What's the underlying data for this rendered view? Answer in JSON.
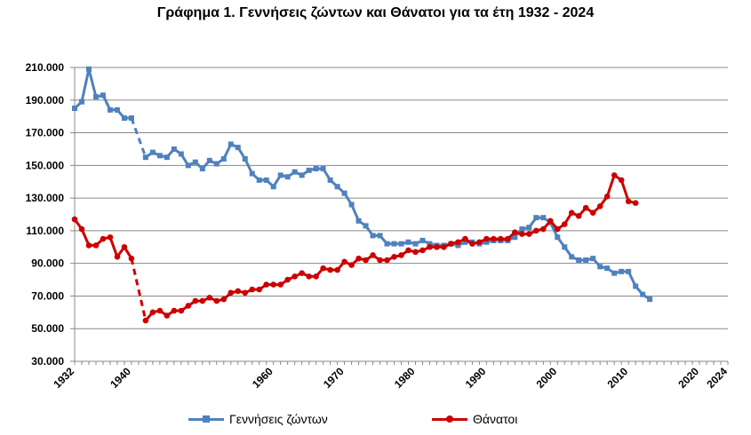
{
  "chart_data": {
    "type": "line",
    "title": "Γράφημα 1.  Γεννήσεις ζώντων και Θάνατοι για τα έτη 1932 - 2024",
    "xlabel": "",
    "ylabel": "",
    "ylim": [
      30000,
      210000
    ],
    "xlim": [
      1932,
      2024
    ],
    "y_ticks": [
      30000,
      50000,
      70000,
      90000,
      110000,
      130000,
      150000,
      170000,
      190000,
      210000
    ],
    "y_tick_labels": [
      "30.000",
      "50.000",
      "70.000",
      "90.000",
      "110.000",
      "130.000",
      "150.000",
      "170.000",
      "190.000",
      "210.000"
    ],
    "x_ticks": [
      1932,
      1940,
      1960,
      1970,
      1980,
      1990,
      2000,
      2010,
      2020,
      2024
    ],
    "x_tick_labels": [
      "1932",
      "1940",
      "1960",
      "1970",
      "1980",
      "1990",
      "2000",
      "2010",
      "2020",
      "2024"
    ],
    "grid": "horizontal",
    "legend_position": "bottom",
    "series": [
      {
        "name": "Γεννήσεις ζώντων",
        "color": "#4f81bd",
        "marker": "square",
        "segments": [
          {
            "style": "solid",
            "points": [
              [
                1932,
                185000
              ],
              [
                1933,
                189000
              ],
              [
                1934,
                209000
              ],
              [
                1935,
                192000
              ],
              [
                1936,
                193000
              ],
              [
                1937,
                184000
              ],
              [
                1938,
                184000
              ],
              [
                1939,
                179000
              ],
              [
                1940,
                179000
              ]
            ]
          },
          {
            "style": "dashed",
            "points": [
              [
                1940,
                179000
              ],
              [
                1942,
                155000
              ]
            ]
          },
          {
            "style": "solid",
            "points": [
              [
                1942,
                155000
              ],
              [
                1943,
                158000
              ],
              [
                1944,
                156000
              ],
              [
                1945,
                155000
              ],
              [
                1946,
                160000
              ],
              [
                1947,
                157000
              ],
              [
                1948,
                150000
              ],
              [
                1949,
                152000
              ],
              [
                1950,
                148000
              ],
              [
                1951,
                153000
              ],
              [
                1952,
                151000
              ],
              [
                1953,
                154000
              ],
              [
                1954,
                163000
              ],
              [
                1955,
                161000
              ],
              [
                1956,
                154000
              ],
              [
                1957,
                145000
              ],
              [
                1958,
                141000
              ],
              [
                1959,
                141000
              ],
              [
                1960,
                137000
              ],
              [
                1961,
                144000
              ],
              [
                1962,
                143000
              ],
              [
                1963,
                146000
              ],
              [
                1964,
                144000
              ],
              [
                1965,
                147000
              ],
              [
                1966,
                148000
              ],
              [
                1967,
                148000
              ],
              [
                1968,
                141000
              ],
              [
                1969,
                137000
              ],
              [
                1970,
                133000
              ],
              [
                1971,
                126000
              ],
              [
                1972,
                116000
              ],
              [
                1973,
                113000
              ],
              [
                1974,
                107000
              ],
              [
                1975,
                107000
              ],
              [
                1976,
                102000
              ],
              [
                1977,
                102000
              ],
              [
                1978,
                102000
              ],
              [
                1979,
                103000
              ],
              [
                1980,
                102000
              ],
              [
                1981,
                104000
              ],
              [
                1982,
                102000
              ],
              [
                1983,
                101000
              ],
              [
                1984,
                101000
              ],
              [
                1985,
                102000
              ],
              [
                1986,
                101000
              ],
              [
                1987,
                103000
              ],
              [
                1988,
                103000
              ],
              [
                1989,
                102000
              ],
              [
                1990,
                103000
              ],
              [
                1991,
                104000
              ],
              [
                1992,
                104000
              ],
              [
                1993,
                104000
              ],
              [
                1994,
                106000
              ],
              [
                1995,
                111000
              ],
              [
                1996,
                112000
              ],
              [
                1997,
                118000
              ],
              [
                1998,
                118000
              ],
              [
                1999,
                115000
              ],
              [
                2000,
                106000
              ],
              [
                2001,
                100000
              ],
              [
                2002,
                94000
              ],
              [
                2003,
                92000
              ],
              [
                2004,
                92000
              ],
              [
                2005,
                93000
              ],
              [
                2006,
                88000
              ],
              [
                2007,
                87000
              ],
              [
                2008,
                84000
              ],
              [
                2009,
                85000
              ],
              [
                2010,
                85000
              ],
              [
                2011,
                76000
              ],
              [
                2012,
                71000
              ],
              [
                2013,
                68000
              ]
            ]
          }
        ]
      },
      {
        "name": "Θάνατοι",
        "color": "#cc0000",
        "marker": "circle",
        "segments": [
          {
            "style": "solid",
            "points": [
              [
                1932,
                117000
              ],
              [
                1933,
                111000
              ],
              [
                1934,
                101000
              ],
              [
                1935,
                101000
              ],
              [
                1936,
                105000
              ],
              [
                1937,
                106000
              ],
              [
                1938,
                94000
              ],
              [
                1939,
                100000
              ],
              [
                1940,
                93000
              ]
            ]
          },
          {
            "style": "dashed",
            "points": [
              [
                1940,
                93000
              ],
              [
                1942,
                55000
              ]
            ]
          },
          {
            "style": "solid",
            "points": [
              [
                1942,
                55000
              ],
              [
                1943,
                60000
              ],
              [
                1944,
                61000
              ],
              [
                1945,
                58000
              ],
              [
                1946,
                61000
              ],
              [
                1947,
                61000
              ],
              [
                1948,
                64000
              ],
              [
                1949,
                67000
              ],
              [
                1950,
                67000
              ],
              [
                1951,
                69000
              ],
              [
                1952,
                67000
              ],
              [
                1953,
                68000
              ],
              [
                1954,
                72000
              ],
              [
                1955,
                73000
              ],
              [
                1956,
                72000
              ],
              [
                1957,
                74000
              ],
              [
                1958,
                74000
              ],
              [
                1959,
                77000
              ],
              [
                1960,
                77000
              ],
              [
                1961,
                77000
              ],
              [
                1962,
                80000
              ],
              [
                1963,
                82000
              ],
              [
                1964,
                84000
              ],
              [
                1965,
                82000
              ],
              [
                1966,
                82000
              ],
              [
                1967,
                87000
              ],
              [
                1968,
                86000
              ],
              [
                1969,
                86000
              ],
              [
                1970,
                91000
              ],
              [
                1971,
                89000
              ],
              [
                1972,
                93000
              ],
              [
                1973,
                92000
              ],
              [
                1974,
                95000
              ],
              [
                1975,
                92000
              ],
              [
                1976,
                92000
              ],
              [
                1977,
                94000
              ],
              [
                1978,
                95000
              ],
              [
                1979,
                98000
              ],
              [
                1980,
                97000
              ],
              [
                1981,
                98000
              ],
              [
                1982,
                100000
              ],
              [
                1983,
                100000
              ],
              [
                1984,
                100000
              ],
              [
                1985,
                102000
              ],
              [
                1986,
                103000
              ],
              [
                1987,
                105000
              ],
              [
                1988,
                102000
              ],
              [
                1989,
                103000
              ],
              [
                1990,
                105000
              ],
              [
                1991,
                105000
              ],
              [
                1992,
                105000
              ],
              [
                1993,
                105000
              ],
              [
                1994,
                109000
              ],
              [
                1995,
                108000
              ],
              [
                1996,
                108000
              ],
              [
                1997,
                110000
              ],
              [
                1998,
                111000
              ],
              [
                1999,
                116000
              ],
              [
                2000,
                111000
              ],
              [
                2001,
                114000
              ],
              [
                2002,
                121000
              ],
              [
                2003,
                119000
              ],
              [
                2004,
                124000
              ],
              [
                2005,
                121000
              ],
              [
                2006,
                125000
              ],
              [
                2007,
                131000
              ],
              [
                2008,
                144000
              ],
              [
                2009,
                141000
              ],
              [
                2010,
                128000
              ],
              [
                2011,
                127000
              ]
            ]
          }
        ]
      }
    ]
  }
}
